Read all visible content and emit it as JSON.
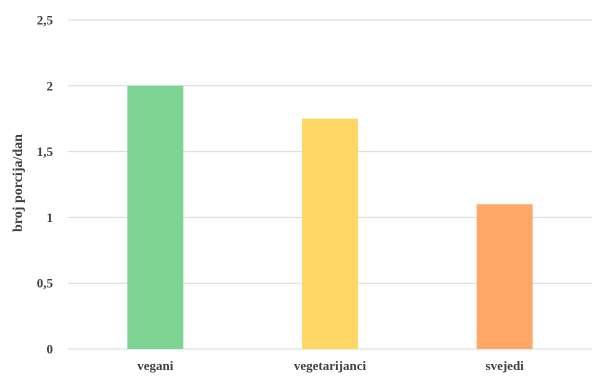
{
  "chart_data": {
    "type": "bar",
    "categories": [
      "vegani",
      "vegetarijanci",
      "svejedi"
    ],
    "values": [
      2.0,
      1.75,
      1.1
    ],
    "colors": [
      "#7ed492",
      "#fed766",
      "#fea767"
    ],
    "title": "",
    "xlabel": "",
    "ylabel": "broj porcija/dan",
    "ylim": [
      0,
      2.5
    ],
    "yticks": [
      0,
      0.5,
      1,
      1.5,
      2,
      2.5
    ],
    "ytick_labels": [
      "0",
      "0,5",
      "1",
      "1,5",
      "2",
      "2,5"
    ],
    "grid": true,
    "legend": "none",
    "gridline_color": "#d9d9d9"
  }
}
